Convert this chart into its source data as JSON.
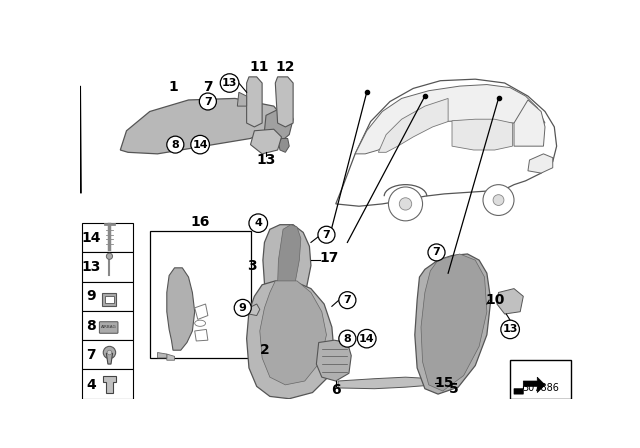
{
  "title": "",
  "part_number": "307886",
  "bg_color": "#ffffff",
  "gray_part": "#b0b0b0",
  "gray_light": "#c8c8c8",
  "gray_dark": "#888888",
  "outline_color": "#555555"
}
